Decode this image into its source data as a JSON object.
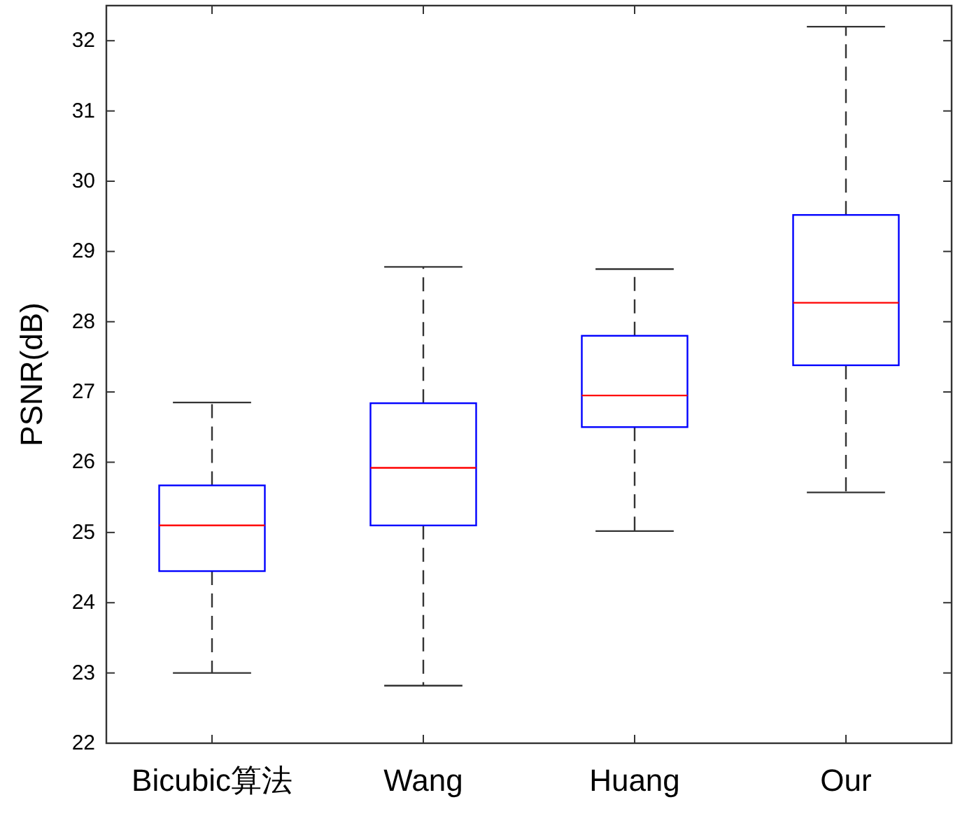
{
  "chart_data": {
    "type": "box",
    "ylabel": "PSNR(dB)",
    "categories": [
      "Bicubic算法",
      "Wang",
      "Huang",
      "Our"
    ],
    "ylim": [
      22,
      32.5
    ],
    "yticks": [
      22,
      23,
      24,
      25,
      26,
      27,
      28,
      29,
      30,
      31,
      32
    ],
    "series": [
      {
        "color": "#0000ff",
        "boxes": [
          {
            "low": 23.0,
            "q1": 24.45,
            "median": 25.1,
            "q3": 25.67,
            "high": 26.85
          },
          {
            "low": 22.82,
            "q1": 25.1,
            "median": 25.92,
            "q3": 26.84,
            "high": 28.78
          },
          {
            "low": 25.02,
            "q1": 26.5,
            "median": 26.95,
            "q3": 27.8,
            "high": 28.75
          },
          {
            "low": 25.57,
            "q1": 27.38,
            "median": 28.27,
            "q3": 29.52,
            "high": 32.2
          }
        ]
      }
    ]
  }
}
